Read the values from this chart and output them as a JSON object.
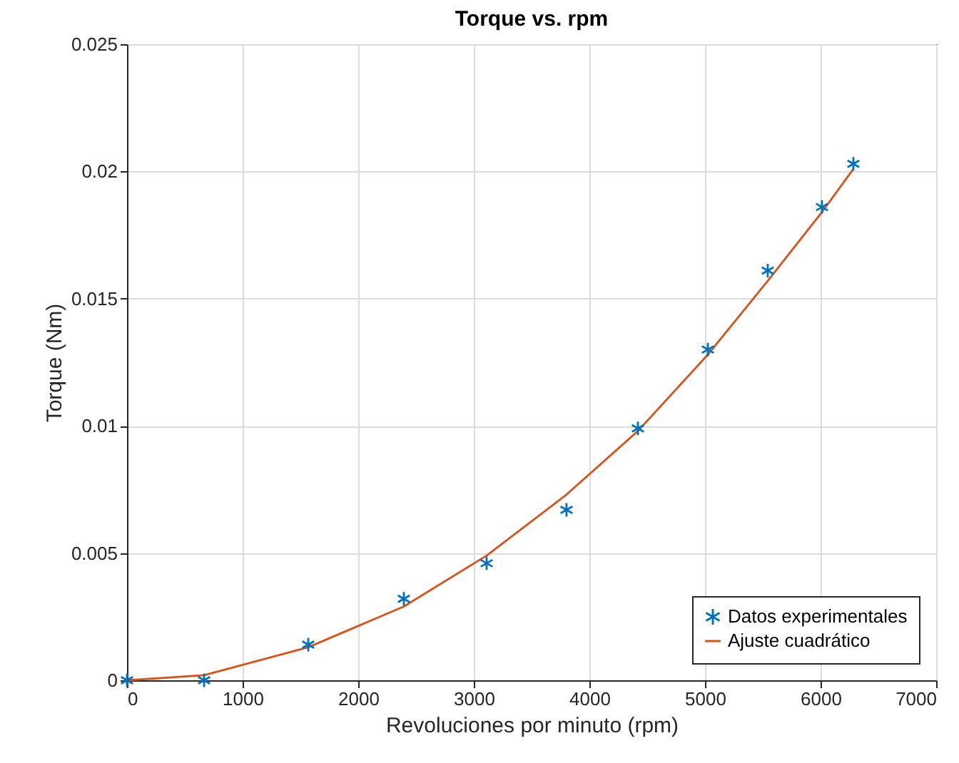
{
  "chart_data": {
    "type": "scatter",
    "title": "Torque vs. rpm",
    "xlabel": "Revoluciones por minuto (rpm)",
    "ylabel": "Torque (Nm)",
    "xlim": [
      0,
      7000
    ],
    "xticks": [
      0,
      1000,
      2000,
      3000,
      4000,
      5000,
      6000,
      7000
    ],
    "ylim": [
      0,
      0.025
    ],
    "yticks": [
      0,
      0.005,
      0.01,
      0.015,
      0.02,
      0.025
    ],
    "grid": true,
    "legend": "bottom right",
    "series": [
      {
        "name": "Datos experimentales",
        "marker": "cross",
        "color": "#0072bd",
        "x": [
          0,
          667,
          1568,
          2395,
          3111,
          3802,
          4420,
          5025,
          5543,
          6012,
          6284
        ],
        "values": [
          0,
          0,
          0.0014,
          0.0032,
          0.0046,
          0.0067,
          0.0099,
          0.013,
          0.0161,
          0.0186,
          0.0203
        ]
      },
      {
        "name": "Ajuste cuadrático",
        "type": "line",
        "line_style": "solid",
        "color": "#d95319",
        "x": [
          0,
          667,
          1568,
          2395,
          3111,
          3802,
          4420,
          5025,
          5543,
          6012,
          6284
        ],
        "values": [
          0,
          0.0002,
          0.0013,
          0.0029,
          0.0049,
          0.0073,
          0.0098,
          0.0128,
          0.0157,
          0.0184,
          0.0201
        ]
      }
    ]
  }
}
